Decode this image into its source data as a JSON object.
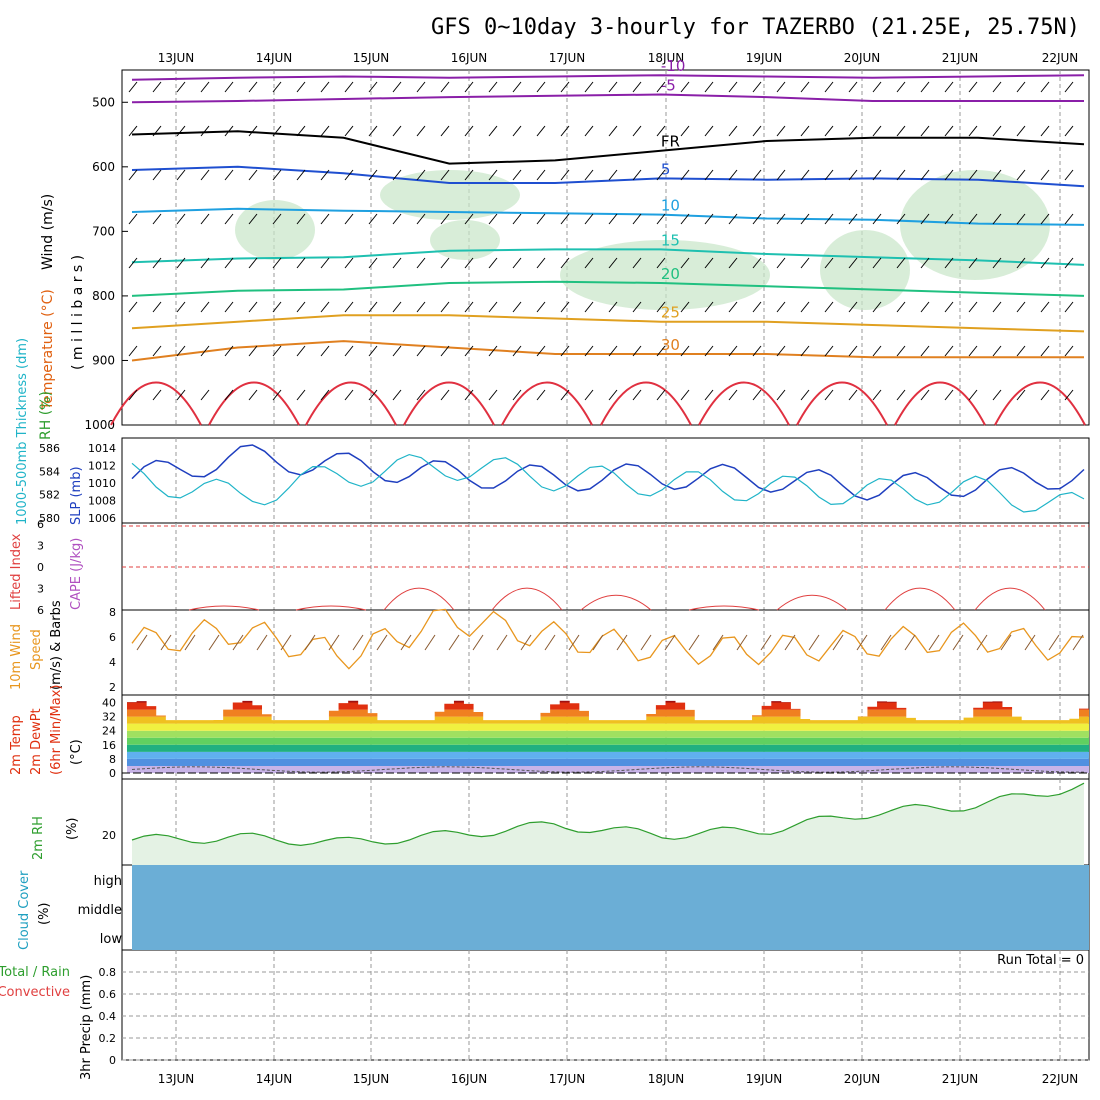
{
  "title": "GFS 0~10day 3-hourly for TAZERBO (21.25E, 25.75N)",
  "days": [
    "13JUN",
    "14JUN",
    "15JUN",
    "16JUN",
    "17JUN",
    "18JUN",
    "19JUN",
    "20JUN",
    "21JUN",
    "22JUN"
  ],
  "colors": {
    "rh_shade": "#c8e6c8",
    "cloud": "#6baed6",
    "slp": "#1f3fbf",
    "thickness": "#20b4c8",
    "lifted": "#e04040",
    "wind": "#e8961e",
    "rh2m": "#2e9e2e"
  },
  "labels": {
    "upper_wind": "Wind (m/s)",
    "upper_temp": "Temperature (°C)",
    "upper_rh": "RH (%)",
    "upper_units": "( m i l l i b a r s )",
    "thickness": "1000-500mb Thickness (dm)",
    "slp": "SLP (mb)",
    "lifted": "Lifted Index",
    "cape": "CAPE (J/kg)",
    "wind10": "10m Wind",
    "wind10b": "Speed",
    "wind10c": "(m/s) & Barbs",
    "temp2m": "2m Temp",
    "dewpt2m": "2m DewPt",
    "minmax": "(6hr Min/Max)",
    "tempunit": "(°C)",
    "rh2m": "2m RH",
    "rhunit": "(%)",
    "cloud": "Cloud Cover",
    "cloudunit": "(%)",
    "precip": "3hr Precip (mm)",
    "total": "Total / Rain",
    "conv": "Convective",
    "run_total": "Run Total = 0"
  },
  "chart_data": [
    {
      "type": "contour",
      "panel": "upper_air",
      "y_ticks": [
        500,
        600,
        700,
        800,
        900,
        1000
      ],
      "temperature_contours": [
        {
          "label": "-10",
          "pressure": [
            465,
            462,
            460,
            462,
            460,
            458,
            460,
            462,
            460,
            458
          ]
        },
        {
          "label": "-5",
          "pressure": [
            500,
            498,
            495,
            492,
            490,
            488,
            492,
            498,
            498,
            498
          ]
        },
        {
          "label": "FR",
          "pressure": [
            550,
            545,
            555,
            595,
            590,
            575,
            560,
            555,
            555,
            565
          ]
        },
        {
          "label": "5",
          "pressure": [
            605,
            600,
            610,
            625,
            625,
            618,
            620,
            618,
            620,
            630
          ]
        },
        {
          "label": "10",
          "pressure": [
            670,
            665,
            668,
            670,
            672,
            674,
            680,
            682,
            688,
            690
          ]
        },
        {
          "label": "15",
          "pressure": [
            748,
            742,
            740,
            730,
            728,
            728,
            735,
            740,
            745,
            752
          ]
        },
        {
          "label": "20",
          "pressure": [
            800,
            792,
            790,
            780,
            778,
            780,
            785,
            790,
            795,
            800
          ]
        },
        {
          "label": "25",
          "pressure": [
            850,
            840,
            830,
            830,
            835,
            840,
            840,
            845,
            850,
            855
          ]
        },
        {
          "label": "30",
          "pressure": [
            900,
            880,
            870,
            880,
            890,
            890,
            890,
            895,
            895,
            895
          ]
        }
      ]
    },
    {
      "type": "line",
      "panel": "slp_thickness",
      "x": [
        "13JUN",
        "14JUN",
        "15JUN",
        "16JUN",
        "17JUN",
        "18JUN",
        "19JUN",
        "20JUN",
        "21JUN",
        "22JUN"
      ],
      "y_ticks_left": [
        580,
        582,
        584,
        586
      ],
      "y_ticks_right": [
        1006,
        1008,
        1010,
        1012,
        1014
      ],
      "series": [
        {
          "name": "SLP (mb)",
          "values": [
            1010.5,
            1013,
            1012,
            1011,
            1010.5,
            1010.8,
            1010.5,
            1009.5,
            1010,
            1011
          ]
        },
        {
          "name": "1000-500mb Thickness (dm)",
          "values": [
            583.6,
            581.8,
            583.8,
            584.5,
            583.5,
            583,
            582.5,
            582.2,
            582.4,
            580.8
          ]
        }
      ]
    },
    {
      "type": "line",
      "panel": "lifted_cape",
      "y_ticks": [
        -6,
        -3,
        0,
        3,
        6
      ],
      "series": [
        {
          "name": "Lifted Index",
          "values": [
            6,
            6,
            6,
            1,
            1,
            3,
            6,
            3,
            1,
            1
          ]
        }
      ]
    },
    {
      "type": "line",
      "panel": "wind10m",
      "y_ticks": [
        2,
        4,
        6,
        8
      ],
      "series": [
        {
          "name": "10m Wind Speed",
          "values": [
            5.5,
            6.5,
            4.5,
            7.5,
            6,
            5,
            5,
            5.5,
            6,
            5
          ]
        }
      ]
    },
    {
      "type": "area",
      "panel": "temp2m",
      "y_ticks": [
        0,
        8,
        16,
        24,
        32,
        40
      ],
      "series": [
        {
          "name": "2m Temp",
          "values": [
            28,
            40,
            40,
            41,
            41,
            40,
            40,
            40,
            40,
            28
          ]
        },
        {
          "name": "2m DewPt",
          "values": [
            2,
            1,
            2,
            3,
            4,
            3,
            3,
            4,
            5,
            6
          ]
        }
      ]
    },
    {
      "type": "line",
      "panel": "rh2m",
      "y_ticks": [
        20
      ],
      "series": [
        {
          "name": "2m RH",
          "values": [
            18,
            19,
            17,
            20,
            24,
            20,
            22,
            29,
            32,
            40
          ]
        }
      ]
    },
    {
      "type": "area",
      "panel": "cloud",
      "y_ticks": [
        "high",
        "middle",
        "low"
      ],
      "series": [
        {
          "name": "Cloud Cover",
          "values": [
            0,
            0,
            0,
            0,
            0,
            0,
            0,
            0,
            0,
            0
          ]
        }
      ]
    },
    {
      "type": "bar",
      "panel": "precip",
      "y_ticks": [
        0,
        0.2,
        0.4,
        0.6,
        0.8
      ],
      "series": [
        {
          "name": "3hr Precip",
          "values": [
            0,
            0,
            0,
            0,
            0,
            0,
            0,
            0,
            0,
            0
          ]
        }
      ]
    }
  ]
}
